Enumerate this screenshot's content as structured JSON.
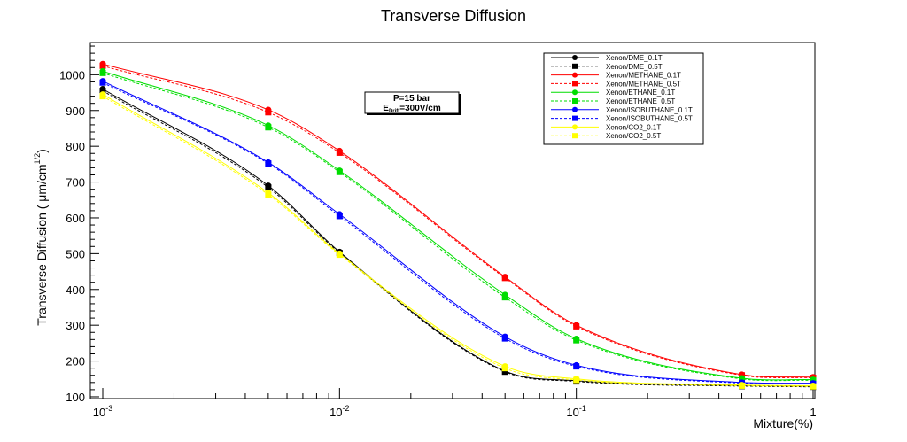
{
  "chart_data": {
    "type": "line",
    "title": "Transverse Diffusion",
    "xlabel": "Mixture(%)",
    "ylabel": "Transverse Diffusion ( μm/cm",
    "ylabel_sup": "1/2",
    "ylabel_close": ")",
    "x_scale": "log",
    "xlim": [
      0.001,
      1
    ],
    "ylim": [
      95,
      1090
    ],
    "grid": false,
    "legend_position": "top-right",
    "x_ticks": [
      {
        "base": "10",
        "exp": "-3",
        "value": 0.001
      },
      {
        "base": "10",
        "exp": "-2",
        "value": 0.01
      },
      {
        "base": "10",
        "exp": "-1",
        "value": 0.1
      },
      {
        "base": "1",
        "exp": "",
        "value": 1
      }
    ],
    "y_ticks": [
      100,
      200,
      300,
      400,
      500,
      600,
      700,
      800,
      900,
      1000
    ],
    "x": [
      0.001,
      0.005,
      0.01,
      0.05,
      0.1,
      0.5,
      1
    ],
    "annotation": {
      "line1": "P=15 bar",
      "line2_main": "E",
      "line2_sub": "Drift",
      "line2_rest": "=300V/cm"
    },
    "series": [
      {
        "name": "Xenon/DME_0.1T",
        "color": "#000000",
        "dash": false,
        "marker": "circle",
        "values": [
          960,
          690,
          505,
          172,
          145,
          132,
          130
        ]
      },
      {
        "name": "Xenon/DME_0.5T",
        "color": "#000000",
        "dash": true,
        "marker": "square",
        "values": [
          955,
          685,
          502,
          170,
          143,
          130,
          128
        ]
      },
      {
        "name": "Xenon/METHANE_0.1T",
        "color": "#ff0000",
        "dash": false,
        "marker": "circle",
        "values": [
          1030,
          902,
          787,
          435,
          300,
          162,
          155
        ]
      },
      {
        "name": "Xenon/METHANE_0.5T",
        "color": "#ff0000",
        "dash": true,
        "marker": "square",
        "values": [
          1025,
          895,
          782,
          432,
          297,
          160,
          153
        ]
      },
      {
        "name": "Xenon/ETHANE_0.1T",
        "color": "#00dd00",
        "dash": false,
        "marker": "circle",
        "values": [
          1010,
          858,
          732,
          385,
          262,
          152,
          148
        ]
      },
      {
        "name": "Xenon/ETHANE_0.5T",
        "color": "#00dd00",
        "dash": true,
        "marker": "square",
        "values": [
          1005,
          853,
          728,
          378,
          258,
          150,
          146
        ]
      },
      {
        "name": "Xenon/ISOBUTHANE_0.1T",
        "color": "#0000ff",
        "dash": false,
        "marker": "circle",
        "values": [
          982,
          755,
          610,
          268,
          188,
          140,
          138
        ]
      },
      {
        "name": "Xenon/ISOBUTHANE_0.5T",
        "color": "#0000ff",
        "dash": true,
        "marker": "square",
        "values": [
          978,
          752,
          605,
          263,
          185,
          138,
          136
        ]
      },
      {
        "name": "Xenon/CO2_0.1T",
        "color": "#ffff00",
        "dash": false,
        "marker": "circle",
        "values": [
          945,
          670,
          500,
          185,
          150,
          133,
          131
        ]
      },
      {
        "name": "Xenon/CO2_0.5T",
        "color": "#ffff00",
        "dash": true,
        "marker": "square",
        "values": [
          940,
          665,
          497,
          180,
          147,
          131,
          129
        ]
      }
    ]
  }
}
